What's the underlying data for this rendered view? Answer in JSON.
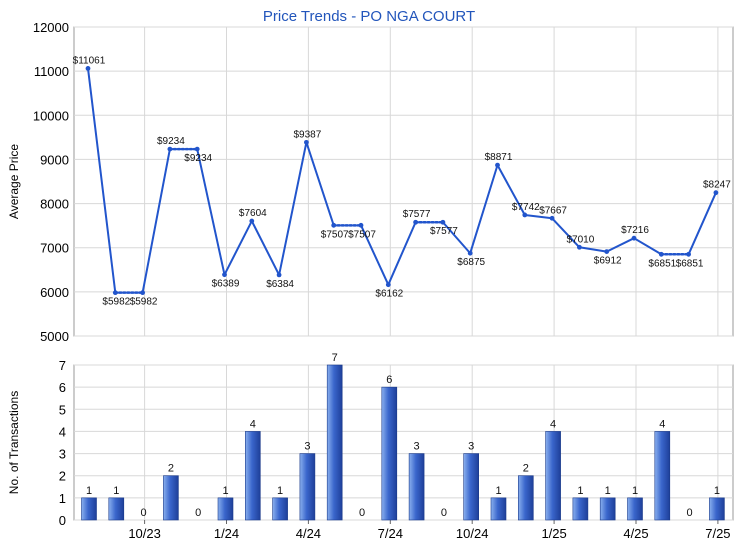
{
  "chart_data": [
    {
      "type": "line",
      "title": "Price Trends - PO NGA COURT",
      "ylabel": "Average Price",
      "ylim": [
        5000,
        12000
      ],
      "y_ticks": [
        "5000",
        "6000",
        "7000",
        "8000",
        "9000",
        "10000",
        "11000",
        "12000"
      ],
      "grid": true,
      "series": [
        {
          "values": [
            11061,
            5982,
            5982,
            9234,
            9234,
            6389,
            7604,
            6384,
            9387,
            7507,
            7507,
            6162,
            7577,
            7577,
            6875,
            8871,
            7742,
            7667,
            7010,
            6912,
            7216,
            6851,
            6851,
            8247
          ],
          "labels": [
            "$11061",
            "$5982",
            "$5982",
            "$9234",
            "$9234",
            "$6389",
            "$7604",
            "$6384",
            "$9387",
            "$7507",
            "$7507",
            "$6162",
            "$7577",
            "$7577",
            "$6875",
            "$8871",
            "$7742",
            "$7667",
            "$7010",
            "$6912",
            "$7216",
            "$6851",
            "$6851",
            "$8247"
          ],
          "carried_forward": [
            false,
            false,
            true,
            false,
            true,
            false,
            false,
            false,
            false,
            false,
            true,
            false,
            false,
            true,
            false,
            false,
            false,
            false,
            false,
            false,
            false,
            false,
            true,
            false
          ]
        }
      ]
    },
    {
      "type": "bar",
      "ylabel": "No. of Transactions",
      "ylim": [
        0,
        7
      ],
      "y_ticks": [
        "0",
        "1",
        "2",
        "3",
        "4",
        "5",
        "6",
        "7"
      ],
      "x_tick_labels": [
        "10/23",
        "1/24",
        "4/24",
        "7/24",
        "10/24",
        "1/25",
        "4/25",
        "7/25"
      ],
      "grid": true,
      "values": [
        1,
        1,
        0,
        2,
        0,
        1,
        4,
        1,
        3,
        7,
        0,
        6,
        3,
        0,
        3,
        1,
        2,
        4,
        1,
        1,
        1,
        4,
        0,
        1
      ],
      "labels": [
        "1",
        "1",
        "0",
        "2",
        "0",
        "1",
        "4",
        "1",
        "3",
        "7",
        "0",
        "6",
        "3",
        "0",
        "3",
        "1",
        "2",
        "4",
        "1",
        "1",
        "1",
        "4",
        "0",
        "1"
      ]
    }
  ],
  "colors": {
    "line": "#2255cc",
    "title": "#2255bb",
    "bar_light": "#8ab0ee",
    "bar_mid": "#3a66cc",
    "bar_dark": "#1e3f99",
    "grid": "#d8d8d8",
    "plot_border": "#999999"
  }
}
